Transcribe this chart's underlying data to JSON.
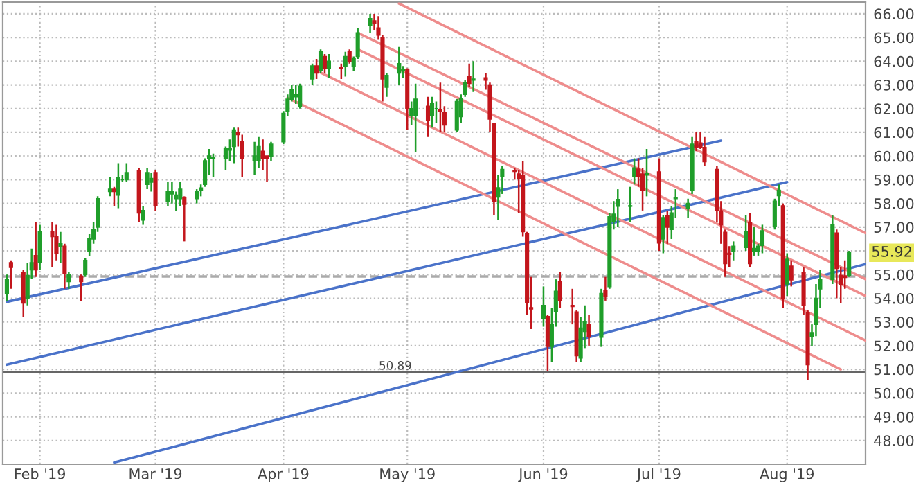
{
  "chart_data": {
    "type": "candlestick",
    "x": [
      "2019-01-24",
      "2019-01-25",
      "2019-01-28",
      "2019-01-29",
      "2019-01-30",
      "2019-01-31",
      "2019-02-01",
      "2019-02-04",
      "2019-02-05",
      "2019-02-06",
      "2019-02-07",
      "2019-02-08",
      "2019-02-11",
      "2019-02-12",
      "2019-02-13",
      "2019-02-14",
      "2019-02-15",
      "2019-02-18",
      "2019-02-19",
      "2019-02-20",
      "2019-02-21",
      "2019-02-22",
      "2019-02-25",
      "2019-02-26",
      "2019-02-27",
      "2019-02-28",
      "2019-03-01",
      "2019-03-04",
      "2019-03-05",
      "2019-03-06",
      "2019-03-07",
      "2019-03-08",
      "2019-03-11",
      "2019-03-12",
      "2019-03-13",
      "2019-03-14",
      "2019-03-15",
      "2019-03-18",
      "2019-03-19",
      "2019-03-20",
      "2019-03-21",
      "2019-03-22",
      "2019-03-25",
      "2019-03-26",
      "2019-03-27",
      "2019-03-28",
      "2019-03-29",
      "2019-04-01",
      "2019-04-02",
      "2019-04-03",
      "2019-04-04",
      "2019-04-05",
      "2019-04-08",
      "2019-04-09",
      "2019-04-10",
      "2019-04-11",
      "2019-04-12",
      "2019-04-15",
      "2019-04-16",
      "2019-04-17",
      "2019-04-18",
      "2019-04-19",
      "2019-04-22",
      "2019-04-23",
      "2019-04-24",
      "2019-04-25",
      "2019-04-26",
      "2019-04-29",
      "2019-04-30",
      "2019-05-01",
      "2019-05-02",
      "2019-05-03",
      "2019-05-06",
      "2019-05-07",
      "2019-05-08",
      "2019-05-09",
      "2019-05-10",
      "2019-05-13",
      "2019-05-14",
      "2019-05-15",
      "2019-05-16",
      "2019-05-17",
      "2019-05-20",
      "2019-05-21",
      "2019-05-22",
      "2019-05-23",
      "2019-05-24",
      "2019-05-27",
      "2019-05-28",
      "2019-05-29",
      "2019-05-30",
      "2019-05-31",
      "2019-06-03",
      "2019-06-04",
      "2019-06-05",
      "2019-06-06",
      "2019-06-07",
      "2019-06-10",
      "2019-06-11",
      "2019-06-12",
      "2019-06-13",
      "2019-06-14",
      "2019-06-17",
      "2019-06-18",
      "2019-06-19",
      "2019-06-20",
      "2019-06-21",
      "2019-06-24",
      "2019-06-25",
      "2019-06-26",
      "2019-06-27",
      "2019-06-28",
      "2019-07-01",
      "2019-07-02",
      "2019-07-03",
      "2019-07-04",
      "2019-07-05",
      "2019-07-08",
      "2019-07-09",
      "2019-07-10",
      "2019-07-11",
      "2019-07-12",
      "2019-07-15",
      "2019-07-16",
      "2019-07-17",
      "2019-07-18",
      "2019-07-19",
      "2019-07-22",
      "2019-07-23",
      "2019-07-24",
      "2019-07-25",
      "2019-07-26",
      "2019-07-29",
      "2019-07-30",
      "2019-07-31",
      "2019-08-01",
      "2019-08-02",
      "2019-08-05",
      "2019-08-06",
      "2019-08-07",
      "2019-08-08",
      "2019-08-09",
      "2019-08-12",
      "2019-08-13",
      "2019-08-14",
      "2019-08-15",
      "2019-08-16"
    ],
    "ohlc": [
      [
        54.2,
        55.0,
        53.9,
        54.8
      ],
      [
        55.5,
        55.6,
        54.4,
        55.3
      ],
      [
        55.1,
        55.2,
        53.2,
        53.8
      ],
      [
        54.0,
        55.5,
        53.7,
        54.96
      ],
      [
        55.2,
        56.1,
        54.8,
        55.5
      ],
      [
        55.8,
        57.2,
        54.9,
        55.2
      ],
      [
        55.5,
        57.1,
        55.2,
        56.8
      ],
      [
        56.8,
        57.2,
        55.3,
        56.6
      ],
      [
        56.6,
        57.1,
        55.6,
        55.9
      ],
      [
        56.2,
        56.8,
        55.5,
        56.3
      ],
      [
        56.2,
        56.3,
        54.4,
        55.06
      ],
      [
        54.7,
        55.1,
        54.4,
        55.0
      ],
      [
        54.9,
        55.0,
        53.9,
        54.7
      ],
      [
        55.0,
        55.7,
        54.9,
        55.6
      ],
      [
        56.0,
        56.7,
        55.8,
        56.5
      ],
      [
        56.5,
        57.2,
        56.3,
        56.9
      ],
      [
        57.0,
        58.3,
        56.8,
        58.2
      ],
      [
        58.5,
        59.1,
        58.3,
        58.6
      ],
      [
        58.6,
        58.7,
        57.9,
        58.5
      ],
      [
        58.35,
        59.7,
        57.8,
        59.1
      ],
      [
        59.0,
        59.2,
        58.9,
        59.0
      ],
      [
        59.0,
        59.7,
        58.9,
        59.3
      ],
      [
        59.4,
        59.5,
        57.2,
        57.6
      ],
      [
        57.3,
        57.9,
        57.1,
        57.7
      ],
      [
        58.8,
        59.5,
        58.6,
        59.3
      ],
      [
        58.9,
        59.3,
        58.5,
        59.05
      ],
      [
        59.3,
        59.4,
        57.7,
        57.9
      ],
      [
        58.1,
        58.9,
        57.9,
        58.5
      ],
      [
        58.4,
        58.9,
        58.0,
        58.5
      ],
      [
        58.2,
        58.5,
        57.7,
        58.35
      ],
      [
        58.2,
        58.9,
        57.9,
        58.6
      ],
      [
        58.25,
        58.3,
        56.4,
        57.96
      ],
      [
        58.2,
        58.6,
        58.0,
        58.5
      ],
      [
        58.55,
        58.8,
        58.3,
        58.65
      ],
      [
        58.8,
        59.9,
        58.7,
        59.8
      ],
      [
        59.9,
        60.3,
        59.2,
        60.0
      ],
      [
        59.9,
        60.1,
        59.1,
        59.95
      ],
      [
        59.9,
        60.4,
        59.4,
        60.3
      ],
      [
        60.25,
        60.7,
        59.8,
        60.3
      ],
      [
        60.4,
        61.2,
        59.7,
        61.1
      ],
      [
        61.0,
        61.2,
        60.4,
        60.9
      ],
      [
        60.6,
        60.9,
        59.1,
        59.9
      ],
      [
        59.8,
        60.6,
        59.2,
        60.0
      ],
      [
        59.8,
        60.8,
        59.5,
        60.4
      ],
      [
        60.2,
        60.7,
        59.4,
        59.9
      ],
      [
        60.0,
        60.0,
        58.9,
        59.9
      ],
      [
        60.0,
        60.6,
        59.8,
        60.5
      ],
      [
        60.6,
        61.9,
        60.5,
        61.8
      ],
      [
        61.9,
        62.6,
        61.7,
        62.4
      ],
      [
        62.4,
        63.0,
        62.3,
        62.8
      ],
      [
        62.5,
        63.0,
        62.2,
        62.6
      ],
      [
        62.1,
        63.05,
        62.0,
        62.95
      ],
      [
        63.25,
        63.9,
        63.0,
        63.8
      ],
      [
        63.8,
        64.1,
        63.25,
        63.5
      ],
      [
        63.6,
        64.5,
        63.5,
        64.4
      ],
      [
        64.2,
        64.3,
        63.5,
        63.7
      ],
      [
        63.7,
        64.3,
        63.3,
        64.0
      ],
      [
        63.75,
        63.9,
        63.25,
        63.7
      ],
      [
        63.8,
        64.4,
        63.35,
        64.2
      ],
      [
        64.4,
        64.5,
        63.9,
        64.0
      ],
      [
        63.8,
        64.2,
        63.6,
        64.1
      ],
      [
        64.2,
        65.4,
        64.1,
        65.2
      ],
      [
        65.5,
        66.0,
        65.2,
        65.8
      ],
      [
        65.7,
        66.0,
        65.3,
        65.6
      ],
      [
        65.4,
        65.9,
        64.9,
        65.1
      ],
      [
        65.0,
        65.1,
        62.3,
        63.25
      ],
      [
        62.9,
        63.5,
        62.5,
        63.4
      ],
      [
        63.5,
        64.6,
        63.0,
        63.9
      ],
      [
        63.6,
        63.8,
        63.3,
        63.65
      ],
      [
        63.65,
        63.7,
        61.1,
        62.0
      ],
      [
        61.7,
        62.3,
        61.3,
        62.0
      ],
      [
        61.7,
        63.05,
        60.15,
        62.4
      ],
      [
        62.1,
        62.5,
        60.8,
        61.5
      ],
      [
        61.7,
        62.5,
        61.2,
        62.2
      ],
      [
        62.0,
        62.3,
        61.4,
        62.0
      ],
      [
        61.95,
        63.1,
        61.0,
        61.9
      ],
      [
        61.85,
        62.1,
        61.0,
        61.31
      ],
      [
        61.1,
        62.4,
        61.0,
        62.3
      ],
      [
        61.66,
        62.6,
        61.4,
        62.44
      ],
      [
        62.6,
        63.2,
        62.5,
        63.1
      ],
      [
        63.37,
        63.9,
        62.9,
        63.06
      ],
      [
        63.2,
        64.0,
        62.7,
        63.25
      ],
      [
        63.3,
        63.5,
        62.8,
        63.2
      ],
      [
        63.0,
        63.1,
        61.0,
        61.56
      ],
      [
        61.37,
        61.4,
        57.5,
        58.07
      ],
      [
        58.27,
        59.2,
        57.3,
        58.66
      ],
      [
        59.14,
        59.6,
        58.4,
        59.43
      ],
      [
        59.4,
        59.5,
        59.0,
        59.35
      ],
      [
        59.24,
        59.4,
        57.6,
        59.05
      ],
      [
        59.18,
        59.8,
        56.6,
        56.81
      ],
      [
        56.72,
        56.8,
        53.3,
        53.81
      ],
      [
        53.6,
        54.9,
        52.7,
        53.55
      ],
      [
        53.13,
        54.5,
        52.8,
        53.7
      ],
      [
        53.23,
        53.3,
        50.92,
        51.97
      ],
      [
        51.97,
        53.6,
        51.3,
        52.9
      ],
      [
        53.43,
        54.8,
        52.8,
        54.3
      ],
      [
        54.69,
        55.1,
        53.6,
        53.91
      ],
      [
        53.7,
        54.4,
        52.9,
        53.65
      ],
      [
        53.42,
        53.5,
        51.3,
        51.58
      ],
      [
        51.48,
        53.2,
        51.3,
        52.74
      ],
      [
        52.6,
        53.7,
        51.9,
        53.0
      ],
      [
        52.9,
        53.3,
        52.0,
        52.4
      ],
      [
        52.36,
        54.4,
        51.95,
        54.2
      ],
      [
        54.34,
        54.9,
        53.9,
        54.1
      ],
      [
        54.49,
        57.6,
        54.4,
        57.44
      ],
      [
        57.24,
        58.1,
        56.9,
        57.55
      ],
      [
        57.88,
        58.6,
        57.0,
        58.17
      ],
      [
        57.88,
        58.7,
        57.2,
        57.9
      ],
      [
        59.14,
        59.9,
        58.8,
        59.5
      ],
      [
        59.45,
        59.9,
        58.7,
        59.14
      ],
      [
        59.24,
        59.5,
        57.7,
        58.56
      ],
      [
        59.2,
        60.3,
        58.3,
        59.25
      ],
      [
        59.33,
        59.9,
        56.0,
        56.33
      ],
      [
        56.5,
        57.5,
        55.9,
        57.4
      ],
      [
        57.5,
        57.7,
        56.3,
        57.0
      ],
      [
        56.9,
        57.9,
        56.5,
        57.6
      ],
      [
        58.2,
        58.6,
        57.4,
        58.25
      ],
      [
        57.8,
        58.2,
        57.4,
        58.0
      ],
      [
        58.56,
        60.8,
        58.4,
        60.5
      ],
      [
        60.6,
        61.0,
        60.2,
        60.35
      ],
      [
        60.55,
        61.0,
        60.3,
        60.35
      ],
      [
        60.36,
        60.8,
        59.6,
        59.76
      ],
      [
        59.43,
        59.6,
        57.2,
        57.69
      ],
      [
        57.69,
        58.1,
        56.3,
        57.1
      ],
      [
        56.78,
        56.9,
        54.9,
        55.46
      ],
      [
        55.9,
        56.2,
        55.3,
        55.85
      ],
      [
        56.0,
        56.4,
        55.6,
        56.2
      ],
      [
        56.14,
        57.5,
        56.0,
        56.8
      ],
      [
        57.2,
        57.6,
        55.3,
        55.46
      ],
      [
        56.0,
        57.0,
        55.8,
        56.1
      ],
      [
        56.0,
        56.3,
        55.8,
        56.2
      ],
      [
        56.23,
        57.1,
        55.9,
        56.85
      ],
      [
        57.05,
        58.2,
        56.9,
        58.1
      ],
      [
        58.33,
        58.8,
        57.9,
        58.56
      ],
      [
        57.9,
        58.0,
        53.6,
        54.0
      ],
      [
        54.6,
        55.9,
        54.1,
        55.65
      ],
      [
        55.36,
        55.6,
        54.5,
        54.78
      ],
      [
        55.07,
        55.3,
        53.3,
        53.7
      ],
      [
        53.4,
        53.5,
        50.55,
        51.2
      ],
      [
        52.4,
        52.9,
        51.97,
        52.55
      ],
      [
        52.9,
        54.6,
        52.4,
        54.0
      ],
      [
        54.4,
        55.2,
        53.6,
        54.8
      ],
      [
        54.8,
        57.5,
        54.6,
        57.1
      ],
      [
        56.75,
        56.9,
        54.0,
        55.26
      ],
      [
        54.97,
        55.3,
        53.8,
        54.59
      ],
      [
        54.95,
        55.6,
        54.4,
        54.88
      ],
      [
        54.97,
        56.0,
        54.9,
        55.92
      ]
    ],
    "colors": [
      "#1f9e2a",
      "#c3161c",
      "#c3161c",
      "#1f9e2a",
      "#1f9e2a",
      "#c3161c",
      "#1f9e2a",
      "#c3161c",
      "#c3161c",
      "#1f9e2a",
      "#c3161c",
      "#1f9e2a",
      "#c3161c",
      "#1f9e2a",
      "#1f9e2a",
      "#1f9e2a",
      "#1f9e2a",
      "#1f9e2a",
      "#c3161c",
      "#1f9e2a",
      "#1f9e2a",
      "#1f9e2a",
      "#c3161c",
      "#1f9e2a",
      "#1f9e2a",
      "#1f9e2a",
      "#c3161c",
      "#1f9e2a",
      "#1f9e2a",
      "#1f9e2a",
      "#1f9e2a",
      "#c3161c",
      "#1f9e2a",
      "#1f9e2a",
      "#1f9e2a",
      "#1f9e2a",
      "#1f9e2a",
      "#1f9e2a",
      "#1f9e2a",
      "#1f9e2a",
      "#c3161c",
      "#c3161c",
      "#1f9e2a",
      "#1f9e2a",
      "#c3161c",
      "#c3161c",
      "#1f9e2a",
      "#1f9e2a",
      "#1f9e2a",
      "#1f9e2a",
      "#1f9e2a",
      "#1f9e2a",
      "#1f9e2a",
      "#c3161c",
      "#1f9e2a",
      "#c3161c",
      "#1f9e2a",
      "#c3161c",
      "#1f9e2a",
      "#c3161c",
      "#1f9e2a",
      "#1f9e2a",
      "#1f9e2a",
      "#c3161c",
      "#c3161c",
      "#c3161c",
      "#1f9e2a",
      "#1f9e2a",
      "#1f9e2a",
      "#c3161c",
      "#1f9e2a",
      "#1f9e2a",
      "#c3161c",
      "#1f9e2a",
      "#1f9e2a",
      "#c3161c",
      "#c3161c",
      "#1f9e2a",
      "#1f9e2a",
      "#1f9e2a",
      "#c3161c",
      "#1f9e2a",
      "#c3161c",
      "#c3161c",
      "#c3161c",
      "#1f9e2a",
      "#1f9e2a",
      "#c3161c",
      "#c3161c",
      "#c3161c",
      "#c3161c",
      "#c3161c",
      "#1f9e2a",
      "#c3161c",
      "#1f9e2a",
      "#1f9e2a",
      "#c3161c",
      "#c3161c",
      "#c3161c",
      "#1f9e2a",
      "#1f9e2a",
      "#c3161c",
      "#1f9e2a",
      "#c3161c",
      "#1f9e2a",
      "#1f9e2a",
      "#1f9e2a",
      "#1f9e2a",
      "#1f9e2a",
      "#c3161c",
      "#c3161c",
      "#1f9e2a",
      "#c3161c",
      "#1f9e2a",
      "#c3161c",
      "#1f9e2a",
      "#1f9e2a",
      "#1f9e2a",
      "#1f9e2a",
      "#c3161c",
      "#c3161c",
      "#c3161c",
      "#c3161c",
      "#c3161c",
      "#c3161c",
      "#c3161c",
      "#1f9e2a",
      "#1f9e2a",
      "#c3161c",
      "#1f9e2a",
      "#1f9e2a",
      "#1f9e2a",
      "#1f9e2a",
      "#1f9e2a",
      "#c3161c",
      "#1f9e2a",
      "#c3161c",
      "#c3161c",
      "#c3161c",
      "#1f9e2a",
      "#1f9e2a",
      "#1f9e2a",
      "#1f9e2a",
      "#c3161c",
      "#c3161c",
      "#c3161c",
      "#1f9e2a"
    ],
    "series": [
      {
        "type": "line",
        "x": [
          "2019-02-19",
          "2019-08-20"
        ],
        "values": [
          47.07,
          55.44
        ],
        "color": "#4a72c9"
      },
      {
        "type": "line",
        "x": [
          "2019-01-24",
          "2019-08-01"
        ],
        "values": [
          51.2,
          58.9
        ],
        "color": "#4a72c9"
      },
      {
        "type": "line",
        "x": [
          "2019-01-24",
          "2019-07-16"
        ],
        "values": [
          53.85,
          60.65
        ],
        "color": "#4a72c9"
      },
      {
        "type": "line",
        "x": [
          "2019-04-29",
          "2019-08-20"
        ],
        "values": [
          66.43,
          56.75
        ],
        "color": "#ee8c8c"
      },
      {
        "type": "line",
        "x": [
          "2019-04-19",
          "2019-08-20"
        ],
        "values": [
          65.2,
          54.81
        ],
        "color": "#ee8c8c"
      },
      {
        "type": "line",
        "x": [
          "2019-04-19",
          "2019-08-20"
        ],
        "values": [
          64.5,
          54.1
        ],
        "color": "#ee8c8c"
      },
      {
        "type": "line",
        "x": [
          "2019-04-08",
          "2019-08-20"
        ],
        "values": [
          63.69,
          52.22
        ],
        "color": "#ee8c8c"
      },
      {
        "type": "line",
        "x": [
          "2019-04-02",
          "2019-08-14"
        ],
        "values": [
          62.46,
          51.0
        ],
        "color": "#ee8c8c"
      }
    ],
    "ref_lines": [
      {
        "axis": "y",
        "value": 50.89,
        "label": "50.89",
        "color": "#666666",
        "line_style": "solid"
      },
      {
        "axis": "y",
        "value": 54.92,
        "color": "#aaaaaa",
        "line_style": "dashed"
      }
    ],
    "annotations": [
      {
        "text": "55.92",
        "y": 55.92
      }
    ],
    "xlim": [
      "2019-01-23",
      "2019-08-20"
    ],
    "xticks": [
      {
        "value": "2019-02-01",
        "label": "Feb '19"
      },
      {
        "value": "2019-03-01",
        "label": "Mar '19"
      },
      {
        "value": "2019-04-01",
        "label": "Apr '19"
      },
      {
        "value": "2019-05-01",
        "label": "May '19"
      },
      {
        "value": "2019-06-03",
        "label": "Jun '19"
      },
      {
        "value": "2019-07-01",
        "label": "Jul '19"
      },
      {
        "value": "2019-08-01",
        "label": "Aug '19"
      }
    ],
    "ylim": [
      47.0,
      66.5
    ],
    "yticks": [
      {
        "value": 48,
        "label": "48.00"
      },
      {
        "value": 49,
        "label": "49.00"
      },
      {
        "value": 50,
        "label": "50.00"
      },
      {
        "value": 51,
        "label": "51.00"
      },
      {
        "value": 52,
        "label": "52.00"
      },
      {
        "value": 53,
        "label": "53.00"
      },
      {
        "value": 54,
        "label": "54.00"
      },
      {
        "value": 55,
        "label": "55.00"
      },
      {
        "value": 56,
        "label": null
      },
      {
        "value": 57,
        "label": "57.00"
      },
      {
        "value": 58,
        "label": "58.00"
      },
      {
        "value": 59,
        "label": "59.00"
      },
      {
        "value": 60,
        "label": "60.00"
      },
      {
        "value": 61,
        "label": "61.00"
      },
      {
        "value": 62,
        "label": "62.00"
      },
      {
        "value": 63,
        "label": "63.00"
      },
      {
        "value": 64,
        "label": "64.00"
      },
      {
        "value": 65,
        "label": "65.00"
      },
      {
        "value": 66,
        "label": "66.00"
      }
    ],
    "grid": true
  }
}
